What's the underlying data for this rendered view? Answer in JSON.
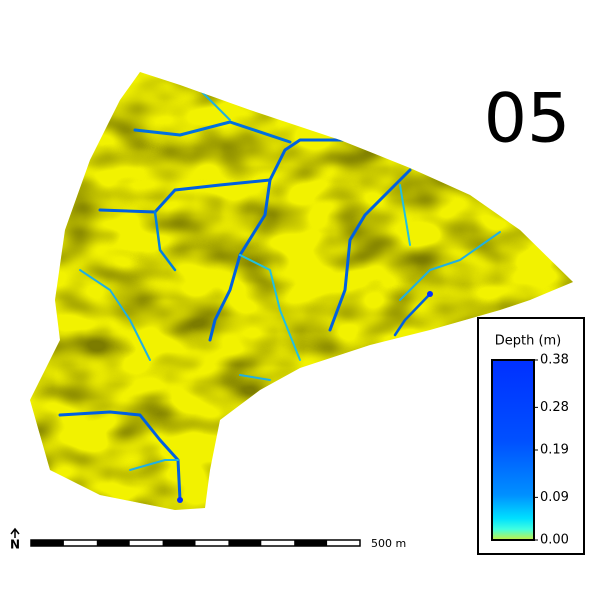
{
  "panel_label": "05",
  "legend": {
    "title": "Depth (m)",
    "ticks": [
      {
        "value": 0,
        "label": "0.00"
      },
      0.09,
      0.19,
      0.28,
      0.38
    ]
  },
  "scale_bar": {
    "label": "500 m"
  },
  "north_arrow": {
    "label": "N"
  }
}
